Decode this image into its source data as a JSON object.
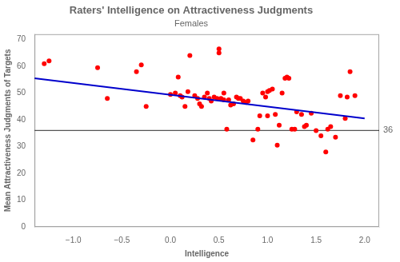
{
  "chart_data": {
    "type": "scatter",
    "title": "Raters' Intelligence on Attractiveness Judgments",
    "subtitle": "Females",
    "xlabel": "Intelligence",
    "ylabel": "Mean Attractiveness Judgments of Targets",
    "xlim": [
      -1.4,
      2.15
    ],
    "ylim": [
      0,
      72
    ],
    "xticks": [
      {
        "value": -1.0,
        "label": "−1.0"
      },
      {
        "value": -0.5,
        "label": "−0.5"
      },
      {
        "value": 0.0,
        "label": "0.0"
      },
      {
        "value": 0.5,
        "label": "0.5"
      },
      {
        "value": 1.0,
        "label": "1.0"
      },
      {
        "value": 1.5,
        "label": "1.5"
      },
      {
        "value": 2.0,
        "label": "2.0"
      }
    ],
    "yticks": [
      0,
      10,
      20,
      30,
      40,
      50,
      60,
      70
    ],
    "grid": false,
    "series": [
      {
        "type": "scatter",
        "color": "#FF0000",
        "marker": "circle",
        "x": [
          -1.3,
          -1.25,
          -0.75,
          -0.65,
          -0.35,
          -0.3,
          -0.25,
          0.0,
          0.05,
          0.08,
          0.1,
          0.12,
          0.15,
          0.18,
          0.2,
          0.25,
          0.28,
          0.3,
          0.32,
          0.35,
          0.38,
          0.4,
          0.42,
          0.45,
          0.48,
          0.5,
          0.5,
          0.52,
          0.55,
          0.55,
          0.58,
          0.6,
          0.62,
          0.65,
          0.68,
          0.7,
          0.72,
          0.75,
          0.78,
          0.8,
          0.85,
          0.9,
          0.92,
          0.95,
          0.98,
          1.0,
          1.0,
          1.02,
          1.05,
          1.08,
          1.1,
          1.12,
          1.15,
          1.18,
          1.2,
          1.22,
          1.25,
          1.28,
          1.3,
          1.35,
          1.38,
          1.4,
          1.45,
          1.5,
          1.55,
          1.6,
          1.62,
          1.65,
          1.7,
          1.75,
          1.8,
          1.82,
          1.85,
          1.9
        ],
        "values": [
          61.0,
          62.0,
          59.5,
          48.0,
          58.0,
          60.5,
          45.0,
          49.5,
          50.0,
          56.0,
          49.0,
          48.5,
          45.0,
          50.5,
          64.0,
          49.0,
          48.0,
          46.0,
          45.0,
          48.5,
          50.0,
          48.0,
          47.0,
          48.5,
          48.0,
          65.0,
          66.5,
          48.0,
          47.5,
          50.0,
          36.5,
          47.5,
          45.5,
          46.0,
          48.5,
          48.0,
          48.0,
          47.0,
          46.5,
          47.0,
          32.5,
          36.5,
          41.5,
          50.0,
          48.5,
          41.5,
          50.5,
          51.0,
          51.5,
          42.0,
          30.5,
          38.0,
          50.0,
          55.5,
          56.0,
          55.5,
          36.5,
          36.5,
          43.0,
          42.0,
          37.5,
          38.0,
          42.5,
          36.0,
          34.0,
          28.0,
          36.5,
          37.5,
          33.5,
          49.0,
          40.5,
          48.5,
          58.0,
          49.0
        ]
      },
      {
        "type": "line",
        "color": "#0000CC",
        "line_style": "solid",
        "x": [
          -1.4,
          2.0
        ],
        "values": [
          55.5,
          40.5
        ]
      }
    ],
    "annotations": [
      {
        "type": "hline",
        "y": 36,
        "label": "36",
        "color": "#555555"
      }
    ]
  }
}
